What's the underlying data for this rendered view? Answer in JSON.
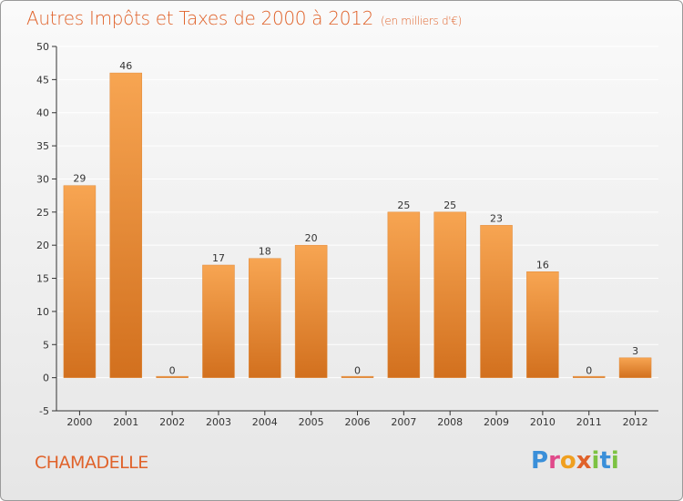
{
  "header": {
    "title": "Autres Impôts et Taxes de 2000 à 2012",
    "unit": "(en milliers d'€)"
  },
  "footer": {
    "commune": "CHAMADELLE",
    "brand": "Proxiti"
  },
  "colors": {
    "accent": "#e0622a",
    "bar_light": "#f7a552",
    "bar_dark": "#d2701e",
    "axis": "#333333",
    "grid": "#ffffff"
  },
  "chart_data": {
    "type": "bar",
    "title": "Autres Impôts et Taxes de 2000 à 2012",
    "subtitle": "(en milliers d'€)",
    "categories": [
      "2000",
      "2001",
      "2002",
      "2003",
      "2004",
      "2005",
      "2006",
      "2007",
      "2008",
      "2009",
      "2010",
      "2011",
      "2012"
    ],
    "values": [
      29,
      46,
      0,
      17,
      18,
      20,
      0,
      25,
      25,
      23,
      16,
      0,
      3
    ],
    "data_labels": [
      "29",
      "46",
      "0",
      "17",
      "18",
      "20",
      "0",
      "25",
      "25",
      "23",
      "16",
      "0",
      "3"
    ],
    "yticks": [
      "-5",
      "0",
      "5",
      "10",
      "15",
      "20",
      "25",
      "30",
      "35",
      "40",
      "45",
      "50"
    ],
    "ylim": [
      -5,
      50
    ],
    "grid": true,
    "xlabel": "",
    "ylabel": ""
  }
}
